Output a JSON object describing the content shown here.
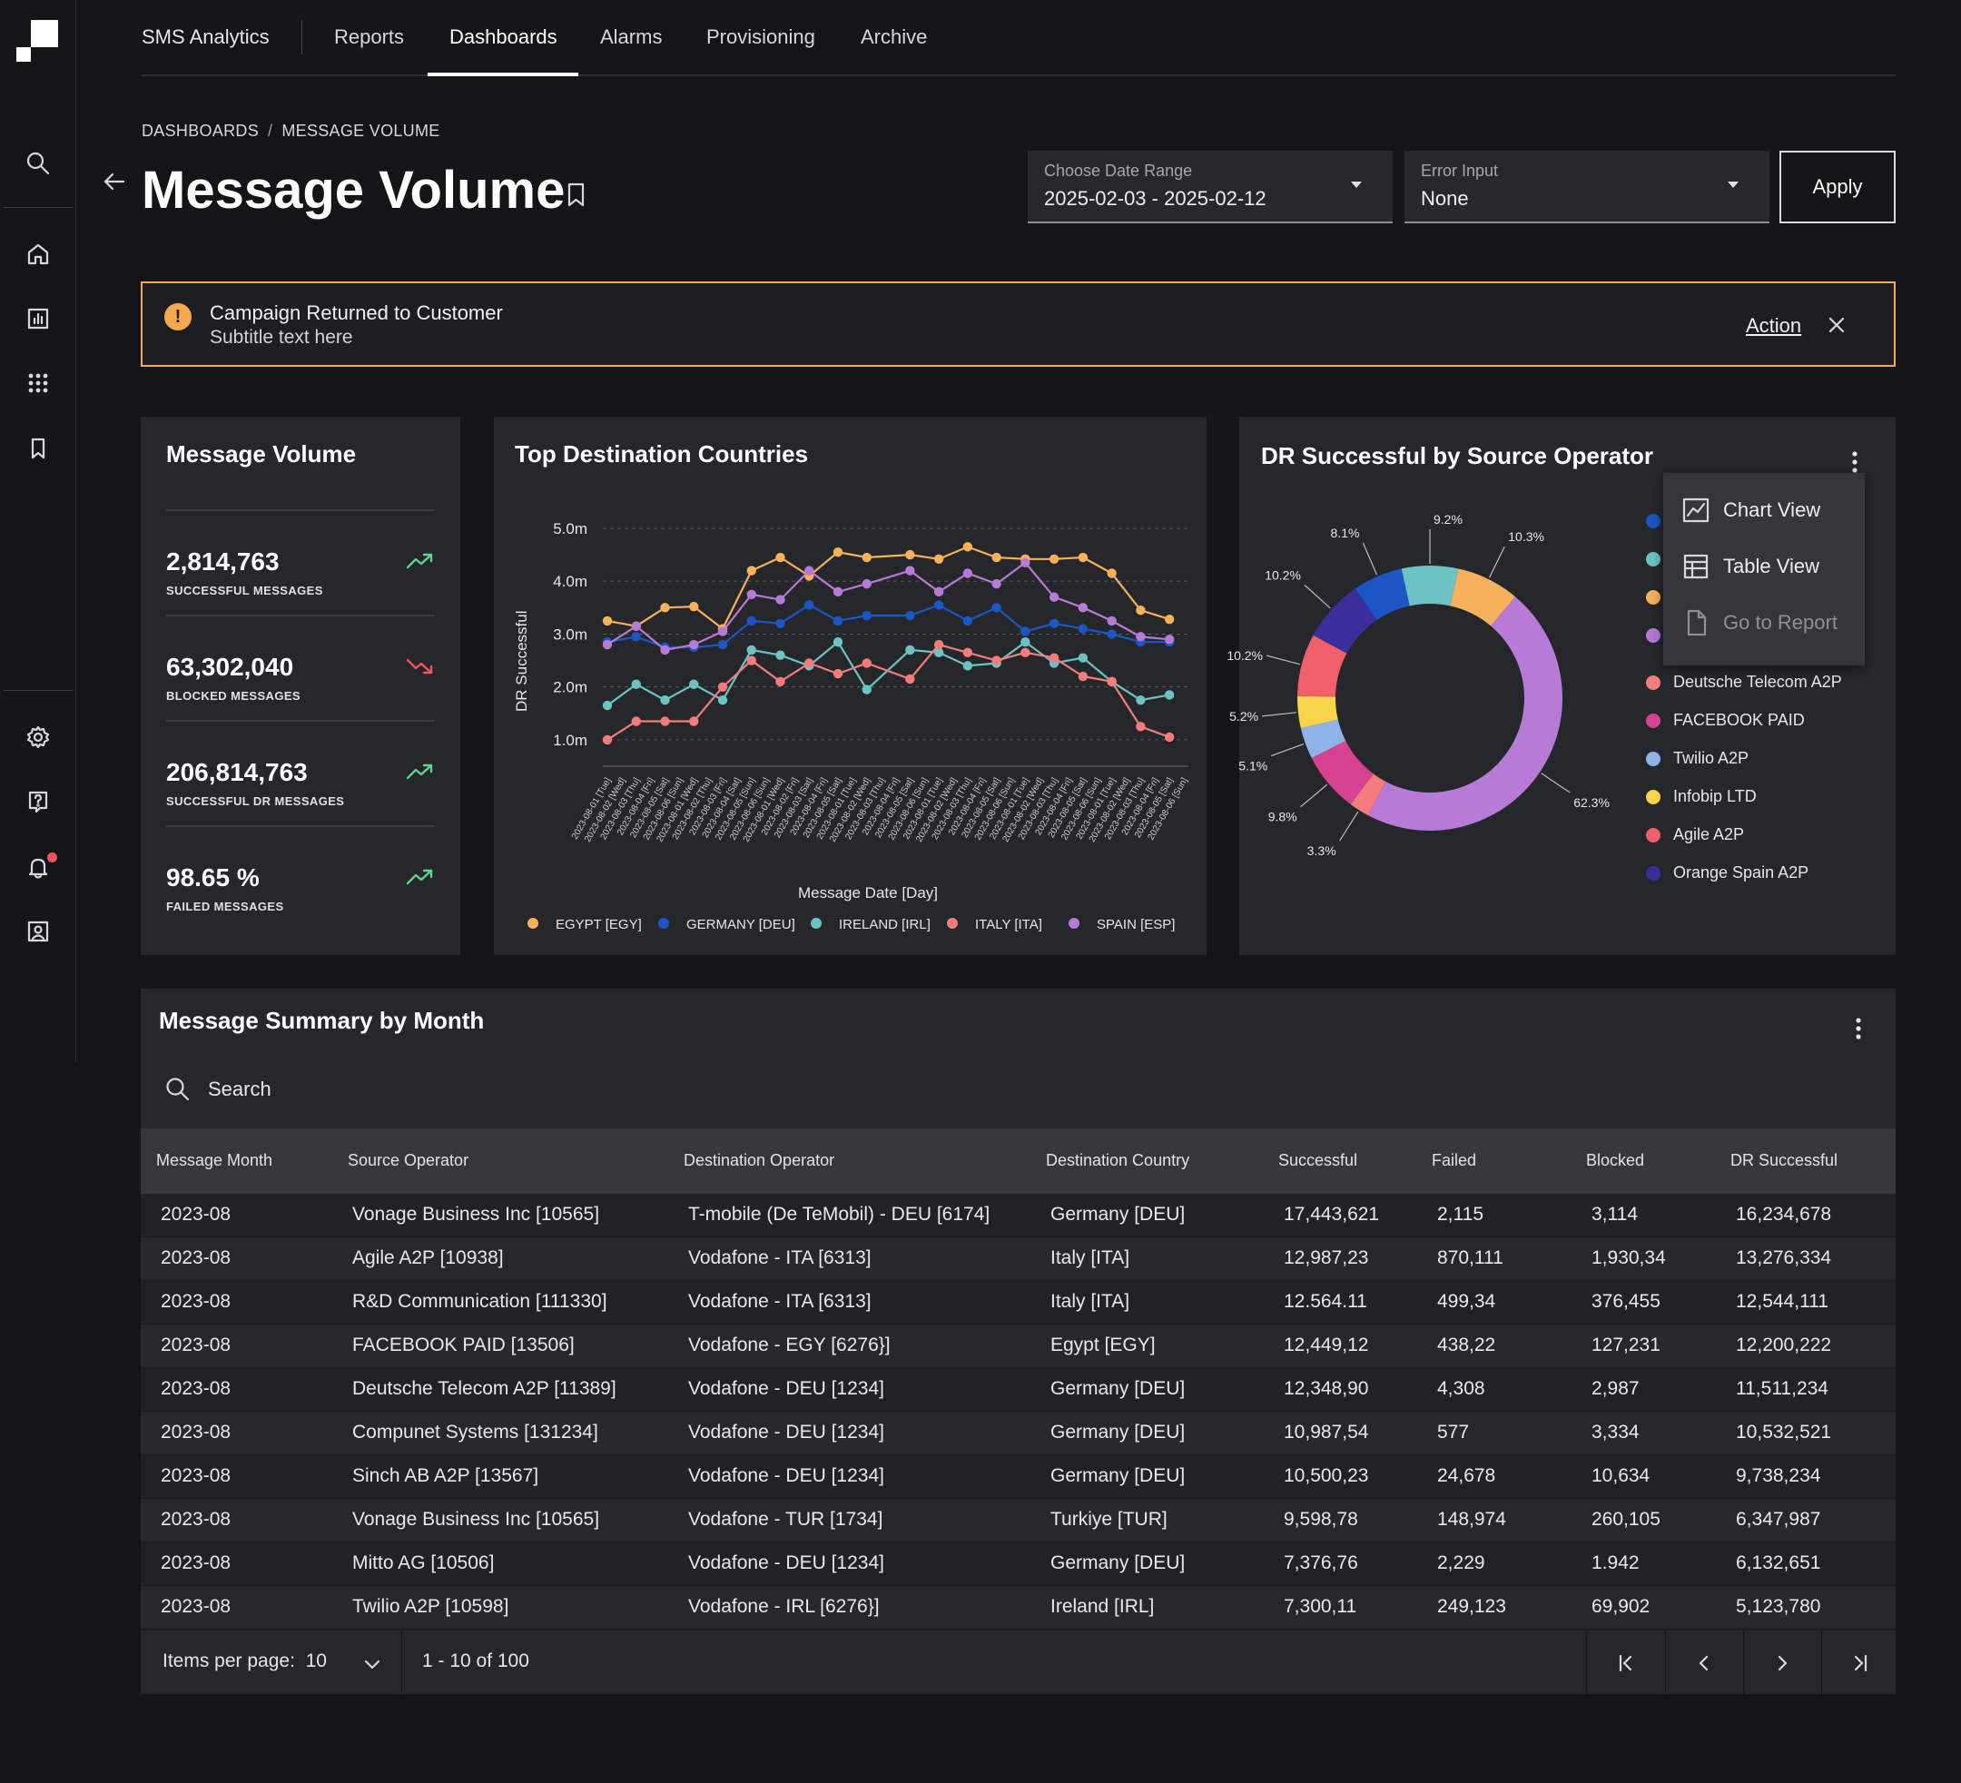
{
  "nav": {
    "brand": "SMS Analytics",
    "tabs": [
      {
        "label": "Reports"
      },
      {
        "label": "Dashboards",
        "active": true
      },
      {
        "label": "Alarms"
      },
      {
        "label": "Provisioning"
      },
      {
        "label": "Archive"
      }
    ]
  },
  "rail": {
    "top_icons": [
      "search-icon"
    ],
    "main_icons": [
      "home-icon",
      "bar-chart-icon",
      "apps-grid-icon",
      "bookmark-icon"
    ],
    "bottom_icons": [
      "gear-icon",
      "help-icon",
      "bell-icon",
      "user-profile-icon"
    ]
  },
  "breadcrumb": {
    "root": "DASHBOARDS",
    "current": "MESSAGE VOLUME"
  },
  "page": {
    "title": "Message Volume"
  },
  "filters": {
    "date_range": {
      "label": "Choose Date Range",
      "value": "2025-02-03 - 2025-02-12"
    },
    "error_input": {
      "label": "Error Input",
      "value": "None"
    },
    "apply_label": "Apply"
  },
  "banner": {
    "title": "Campaign Returned to Customer",
    "subtitle": "Subtitle text here",
    "action_label": "Action",
    "accent": "#f3a85a"
  },
  "kpi_card": {
    "title": "Message Volume",
    "items": [
      {
        "value": "2,814,763",
        "label": "SUCCESSFUL MESSAGES",
        "trend": "up"
      },
      {
        "value": "63,302,040",
        "label": "BLOCKED MESSAGES",
        "trend": "down"
      },
      {
        "value": "206,814,763",
        "label": "SUCCESSFUL DR MESSAGES",
        "trend": "up"
      },
      {
        "value": "98.65 %",
        "label": "FAILED MESSAGES",
        "trend": "up"
      }
    ],
    "colors": {
      "up": "#5fd38a",
      "down": "#f0555f"
    }
  },
  "line_card": {
    "title": "Top Destination Countries"
  },
  "donut_card": {
    "title": "DR Successful by Source Operator",
    "legend_visible": [
      {
        "label": "Deutsche Telecom A2P",
        "color": "#f47c7c"
      },
      {
        "label": "FACEBOOK PAID",
        "color": "#d6428f"
      },
      {
        "label": "Twilio A2P",
        "color": "#8fb3e8"
      },
      {
        "label": "Infobip LTD",
        "color": "#f7d54a"
      },
      {
        "label": "Agile A2P",
        "color": "#f0606b"
      },
      {
        "label": "Orange Spain A2P",
        "color": "#3a2e9c"
      }
    ],
    "legend_hidden_colors": [
      "#1c56c4",
      "#6cc3c4",
      "#f7b15d",
      "#b77ad6"
    ]
  },
  "context_menu": {
    "items": [
      {
        "label": "Chart View",
        "icon": "chart-view-icon"
      },
      {
        "label": "Table View",
        "icon": "table-view-icon"
      },
      {
        "label": "Go to Report",
        "icon": "document-icon",
        "disabled": true
      }
    ]
  },
  "chart_data": [
    {
      "type": "line",
      "title": "Top Destination Countries",
      "xlabel": "Message Date [Day]",
      "ylabel": "DR Successful",
      "yticks": [
        "1.0m",
        "2.0m",
        "3.0m",
        "4.0m",
        "5.0m"
      ],
      "ylim": [
        0.5,
        5.0
      ],
      "grid": "horizontal-dashed",
      "legend_position": "bottom",
      "x": [
        "2023-08-01 [Tue]",
        "2023-08-02 [Wed]",
        "2023-08-03 [Thu]",
        "2023-08-04 [Fri]",
        "2023-08-05 [Sat]",
        "2023-08-06 [Sun]",
        "2023-08-01 [Wed]",
        "2023-08-02 [Thu]",
        "2023-08-03 [Fri]",
        "2023-08-04 [Sat]",
        "2023-08-05 [Sun]",
        "2023-08-06 [Sun]",
        "2023-08-01 [Wed]",
        "2023-08-02 [Fri]",
        "2023-08-03 [Sat]",
        "2023-08-04 [Fri]",
        "2023-08-05 [Sat]",
        "2023-08-01 [Tue]",
        "2023-08-02 [Wed]",
        "2023-08-03 [Thu]",
        "2023-08-04 [Fri]",
        "2023-08-05 [Sat]",
        "2023-08-06 [Sun]",
        "2023-08-01 [Tue]",
        "2023-08-02 [Wed]",
        "2023-08-03 [Thu]",
        "2023-08-04 [Fri]",
        "2023-08-05 [Sat]",
        "2023-08-06 [Sun]",
        "2023-08-01 [Tue]",
        "2023-08-02 [Wed]",
        "2023-08-03 [Thu]",
        "2023-08-04 [Fri]",
        "2023-08-05 [Sat]",
        "2023-08-06 [Sun]",
        "2023-08-01 [Tue]",
        "2023-08-02 [Wed]",
        "2023-08-03 [Thu]",
        "2023-08-04 [Fri]",
        "2023-08-05 [Sat]",
        "2023-08-06 [Sun]"
      ],
      "series": [
        {
          "name": "EGYPT [EGY]",
          "color": "#f7b15d",
          "points": [
            {
              "i": 0,
              "v": 3.25
            },
            {
              "i": 2,
              "v": 3.15
            },
            {
              "i": 4,
              "v": 3.5
            },
            {
              "i": 6,
              "v": 3.52
            },
            {
              "i": 8,
              "v": 3.1
            },
            {
              "i": 10,
              "v": 4.2
            },
            {
              "i": 12,
              "v": 4.45
            },
            {
              "i": 14,
              "v": 4.1
            },
            {
              "i": 16,
              "v": 4.55
            },
            {
              "i": 18,
              "v": 4.45
            },
            {
              "i": 21,
              "v": 4.5
            },
            {
              "i": 23,
              "v": 4.42
            },
            {
              "i": 25,
              "v": 4.65
            },
            {
              "i": 27,
              "v": 4.45
            },
            {
              "i": 29,
              "v": 4.42
            },
            {
              "i": 31,
              "v": 4.42
            },
            {
              "i": 33,
              "v": 4.45
            },
            {
              "i": 35,
              "v": 4.15
            },
            {
              "i": 37,
              "v": 3.45
            },
            {
              "i": 39,
              "v": 3.28
            }
          ]
        },
        {
          "name": "GERMANY [DEU]",
          "color": "#1c56c4",
          "points": [
            {
              "i": 0,
              "v": 2.85
            },
            {
              "i": 2,
              "v": 2.95
            },
            {
              "i": 4,
              "v": 2.75
            },
            {
              "i": 6,
              "v": 2.75
            },
            {
              "i": 8,
              "v": 2.8
            },
            {
              "i": 10,
              "v": 3.25
            },
            {
              "i": 12,
              "v": 3.2
            },
            {
              "i": 14,
              "v": 3.55
            },
            {
              "i": 16,
              "v": 3.25
            },
            {
              "i": 18,
              "v": 3.35
            },
            {
              "i": 21,
              "v": 3.35
            },
            {
              "i": 23,
              "v": 3.55
            },
            {
              "i": 25,
              "v": 3.25
            },
            {
              "i": 27,
              "v": 3.5
            },
            {
              "i": 29,
              "v": 3.05
            },
            {
              "i": 31,
              "v": 3.2
            },
            {
              "i": 33,
              "v": 3.1
            },
            {
              "i": 35,
              "v": 3.0
            },
            {
              "i": 37,
              "v": 2.85
            },
            {
              "i": 39,
              "v": 2.85
            }
          ]
        },
        {
          "name": "IRELAND [IRL]",
          "color": "#6cc3c4",
          "points": [
            {
              "i": 0,
              "v": 1.65
            },
            {
              "i": 2,
              "v": 2.05
            },
            {
              "i": 4,
              "v": 1.75
            },
            {
              "i": 6,
              "v": 2.05
            },
            {
              "i": 8,
              "v": 1.75
            },
            {
              "i": 10,
              "v": 2.7
            },
            {
              "i": 12,
              "v": 2.6
            },
            {
              "i": 14,
              "v": 2.4
            },
            {
              "i": 16,
              "v": 2.85
            },
            {
              "i": 18,
              "v": 1.95
            },
            {
              "i": 21,
              "v": 2.7
            },
            {
              "i": 23,
              "v": 2.65
            },
            {
              "i": 25,
              "v": 2.4
            },
            {
              "i": 27,
              "v": 2.45
            },
            {
              "i": 29,
              "v": 2.85
            },
            {
              "i": 31,
              "v": 2.45
            },
            {
              "i": 33,
              "v": 2.55
            },
            {
              "i": 35,
              "v": 2.1
            },
            {
              "i": 37,
              "v": 1.75
            },
            {
              "i": 39,
              "v": 1.85
            }
          ]
        },
        {
          "name": "ITALY [ITA]",
          "color": "#f47c7c",
          "points": [
            {
              "i": 0,
              "v": 1.0
            },
            {
              "i": 2,
              "v": 1.35
            },
            {
              "i": 4,
              "v": 1.35
            },
            {
              "i": 6,
              "v": 1.35
            },
            {
              "i": 8,
              "v": 2.0
            },
            {
              "i": 10,
              "v": 2.5
            },
            {
              "i": 12,
              "v": 2.1
            },
            {
              "i": 14,
              "v": 2.45
            },
            {
              "i": 16,
              "v": 2.25
            },
            {
              "i": 18,
              "v": 2.45
            },
            {
              "i": 21,
              "v": 2.15
            },
            {
              "i": 23,
              "v": 2.8
            },
            {
              "i": 25,
              "v": 2.65
            },
            {
              "i": 27,
              "v": 2.5
            },
            {
              "i": 29,
              "v": 2.65
            },
            {
              "i": 31,
              "v": 2.55
            },
            {
              "i": 33,
              "v": 2.2
            },
            {
              "i": 35,
              "v": 2.1
            },
            {
              "i": 37,
              "v": 1.25
            },
            {
              "i": 39,
              "v": 1.05
            }
          ]
        },
        {
          "name": "SPAIN [ESP]",
          "color": "#b77ad6",
          "points": [
            {
              "i": 0,
              "v": 2.8
            },
            {
              "i": 2,
              "v": 3.15
            },
            {
              "i": 4,
              "v": 2.7
            },
            {
              "i": 6,
              "v": 2.8
            },
            {
              "i": 8,
              "v": 3.05
            },
            {
              "i": 10,
              "v": 3.75
            },
            {
              "i": 12,
              "v": 3.65
            },
            {
              "i": 14,
              "v": 4.2
            },
            {
              "i": 16,
              "v": 3.8
            },
            {
              "i": 18,
              "v": 3.95
            },
            {
              "i": 21,
              "v": 4.2
            },
            {
              "i": 23,
              "v": 3.8
            },
            {
              "i": 25,
              "v": 4.15
            },
            {
              "i": 27,
              "v": 3.95
            },
            {
              "i": 29,
              "v": 4.35
            },
            {
              "i": 31,
              "v": 3.7
            },
            {
              "i": 33,
              "v": 3.5
            },
            {
              "i": 35,
              "v": 3.25
            },
            {
              "i": 37,
              "v": 2.95
            },
            {
              "i": 39,
              "v": 2.9
            }
          ]
        }
      ]
    },
    {
      "type": "pie",
      "title": "DR Successful by Source Operator",
      "slices": [
        {
          "value": 9.2,
          "label": "9.2%",
          "color": "#6cc3c4"
        },
        {
          "value": 10.3,
          "label": "10.3%",
          "color": "#f7b15d"
        },
        {
          "value": 62.3,
          "label": "62.3%",
          "color": "#b77ad6"
        },
        {
          "value": 3.3,
          "label": "3.3%",
          "color": "#f47c7c"
        },
        {
          "value": 9.8,
          "label": "9.8%",
          "color": "#d6428f"
        },
        {
          "value": 5.1,
          "label": "5.1%",
          "color": "#8fb3e8"
        },
        {
          "value": 5.2,
          "label": "5.2%",
          "color": "#f7d54a"
        },
        {
          "value": 10.2,
          "label": "10.2%",
          "color": "#f0606b"
        },
        {
          "value": 10.2,
          "label": "10.2%",
          "color": "#3a2e9c"
        },
        {
          "value": 8.1,
          "label": "8.1%",
          "color": "#1c56c4"
        }
      ]
    }
  ],
  "table": {
    "title": "Message Summary by Month",
    "search_placeholder": "Search",
    "columns": [
      "Message Month",
      "Source Operator",
      "Destination Operator",
      "Destination Country",
      "Successful",
      "Failed",
      "Blocked",
      "DR Successful"
    ],
    "rows": [
      [
        "2023-08",
        "Vonage Business Inc [10565]",
        "T-mobile (De TeMobil) - DEU [6174]",
        "Germany [DEU]",
        "17,443,621",
        "2,115",
        "3,114",
        "16,234,678"
      ],
      [
        "2023-08",
        "Agile A2P [10938]",
        "Vodafone - ITA [6313]",
        "Italy [ITA]",
        "12,987,23",
        "870,111",
        "1,930,34",
        "13,276,334"
      ],
      [
        "2023-08",
        "R&D Communication [111330]",
        "Vodafone - ITA [6313]",
        "Italy [ITA]",
        "12.564.11",
        "499,34",
        "376,455",
        "12,544,111"
      ],
      [
        "2023-08",
        "FACEBOOK PAID [13506]",
        "Vodafone - EGY [6276}]",
        "Egypt [EGY]",
        "12,449,12",
        "438,22",
        "127,231",
        "12,200,222"
      ],
      [
        "2023-08",
        "Deutsche Telecom A2P [11389]",
        "Vodafone - DEU [1234]",
        "Germany [DEU]",
        "12,348,90",
        "4,308",
        "2,987",
        "11,511,234"
      ],
      [
        "2023-08",
        "Compunet Systems [131234]",
        "Vodafone - DEU [1234]",
        "Germany [DEU]",
        "10,987,54",
        "577",
        "3,334",
        "10,532,521"
      ],
      [
        "2023-08",
        "Sinch AB A2P [13567]",
        "Vodafone - DEU [1234]",
        "Germany [DEU]",
        "10,500,23",
        "24,678",
        "10,634",
        "9,738,234"
      ],
      [
        "2023-08",
        "Vonage Business Inc [10565]",
        "Vodafone - TUR [1734]",
        "Turkiye [TUR]",
        "9,598,78",
        "148,974",
        "260,105",
        "6,347,987"
      ],
      [
        "2023-08",
        "Mitto AG [10506]",
        "Vodafone - DEU [1234]",
        "Germany [DEU]",
        "7,376,76",
        "2,229",
        "1.942",
        "6,132,651"
      ],
      [
        "2023-08",
        "Twilio A2P [10598]",
        "Vodafone - IRL [6276}]",
        "Ireland [IRL]",
        "7,300,11",
        "249,123",
        "69,902",
        "5,123,780"
      ]
    ],
    "pagination": {
      "items_per_page_label": "Items per page:",
      "items_per_page": "10",
      "range": "1 - 10 of 100"
    }
  }
}
